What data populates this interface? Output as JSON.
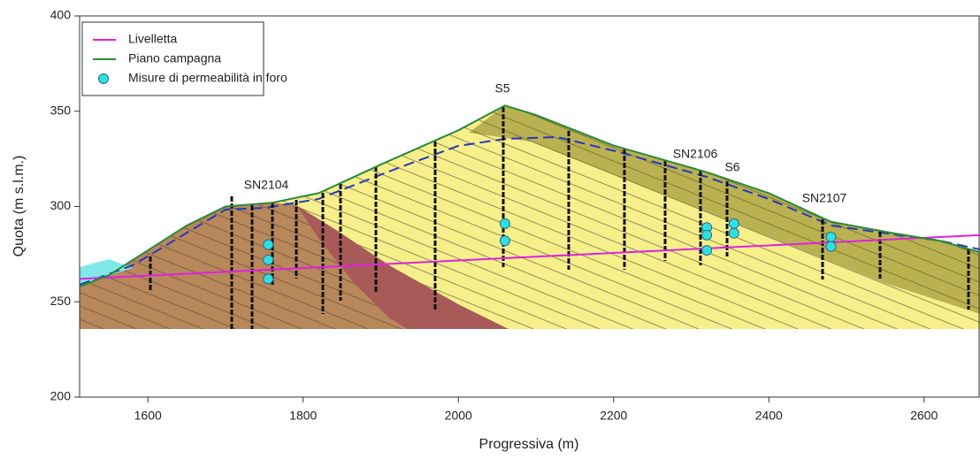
{
  "chart_data": {
    "type": "line",
    "x_label": "Progressiva (m)",
    "y_label": "Quota (m s.l.m.)",
    "xlim": [
      1512,
      2672
    ],
    "ylim": [
      200,
      400
    ],
    "xticks": [
      1600,
      1800,
      2000,
      2200,
      2400,
      2600
    ],
    "yticks": [
      200,
      250,
      300,
      350,
      400
    ],
    "legend": "upper left",
    "annotations": [
      "SN2104",
      "S5",
      "SN2106",
      "S6",
      "SN2107"
    ],
    "series": [
      {
        "name": "Livelletta",
        "type": "line",
        "color": "#e020e0",
        "x": [
          1512,
          2672
        ],
        "values": [
          262,
          285
        ]
      },
      {
        "name": "Piano campagna",
        "type": "line",
        "color": "#2a8a3a",
        "x": [
          1512,
          1550,
          1600,
          1650,
          1700,
          1760,
          1820,
          1900,
          2000,
          2060,
          2100,
          2200,
          2320,
          2400,
          2480,
          2560,
          2620,
          2672
        ],
        "values": [
          258,
          264,
          277,
          290,
          300,
          302,
          307,
          322,
          340,
          353,
          348,
          332,
          318,
          307,
          292,
          286,
          282,
          276
        ]
      },
      {
        "name": "Misure di permeabilità in foro",
        "type": "scatter",
        "color": "#30e0e0",
        "x": [
          1755,
          1755,
          1755,
          2060,
          2060,
          2320,
          2320,
          2320,
          2355,
          2355,
          2480,
          2480
        ],
        "values": [
          280,
          272,
          262,
          291,
          282,
          289,
          285,
          277,
          291,
          286,
          284,
          279
        ]
      }
    ]
  }
}
